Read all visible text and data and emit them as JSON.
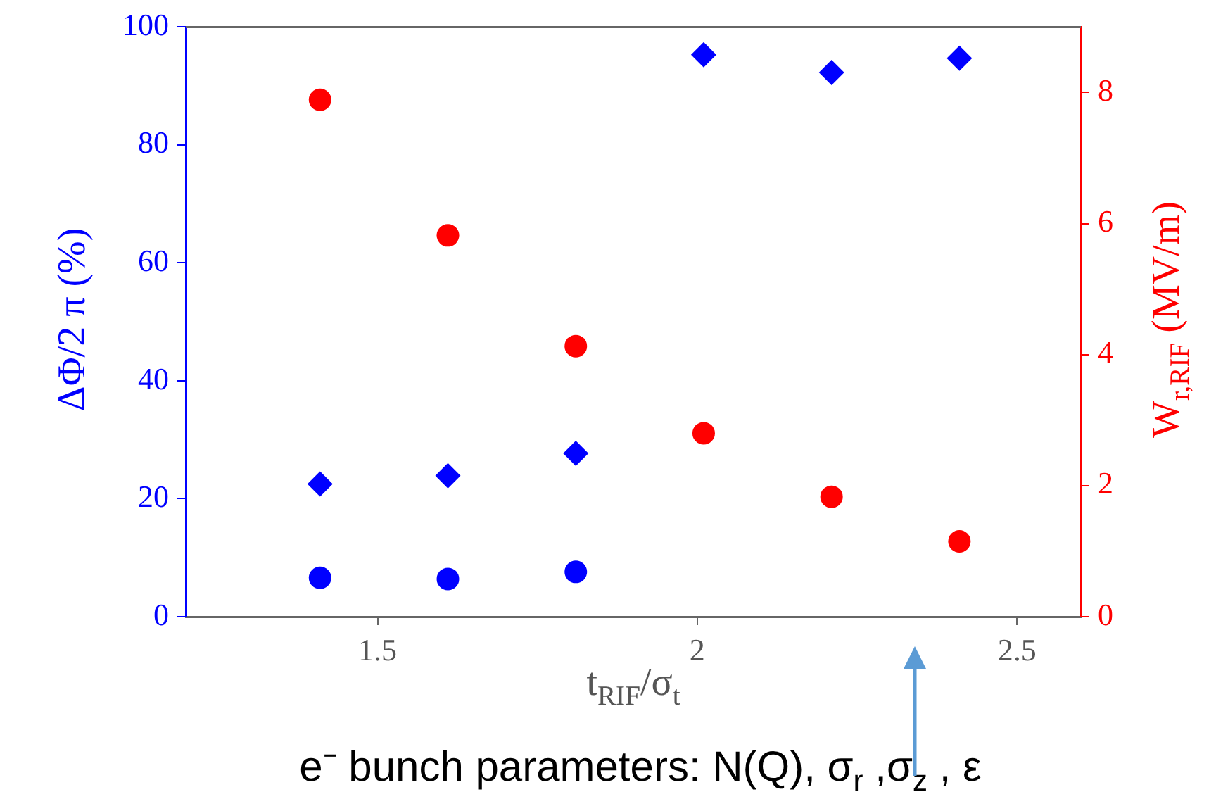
{
  "chart_data": {
    "type": "scatter",
    "xlabel": "t$_{RIF}$/σ$_{t}$",
    "ylabel": "ΔΦ/2 π (%)",
    "y2label": "W$_{r,RIF}$ (MV/m)",
    "annotations": [
      "e⁻ bunch parameters: N(Q), σ$_{r}$ ,σ$_{z}$ , ε"
    ],
    "xlim": [
      1.2,
      2.6
    ],
    "xticks": [
      1.5,
      2,
      2.5
    ],
    "ylim": [
      0,
      100
    ],
    "yticks": [
      0,
      20,
      40,
      60,
      80,
      100
    ],
    "y2lim": [
      0,
      9
    ],
    "y2ticks": [
      0,
      2,
      4,
      6,
      8
    ],
    "grid": false,
    "legend": false,
    "series": [
      {
        "color": "#0000ff",
        "marker": "diamond",
        "x": [
          1.41,
          1.61,
          1.81,
          2.01,
          2.21,
          2.41
        ],
        "values": [
          22.5,
          23.9,
          27.7,
          95.3,
          92.3,
          94.7
        ]
      },
      {
        "color": "#0000ff",
        "marker": "circle",
        "x": [
          1.41,
          1.61,
          1.81
        ],
        "values": [
          6.6,
          6.4,
          7.6
        ]
      },
      {
        "color": "#ff0000",
        "marker": "circle",
        "axis": "y2",
        "x": [
          1.41,
          1.61,
          1.81,
          2.01,
          2.21,
          2.41
        ],
        "values": [
          7.89,
          5.82,
          4.13,
          2.8,
          1.83,
          1.15
        ]
      }
    ]
  }
}
